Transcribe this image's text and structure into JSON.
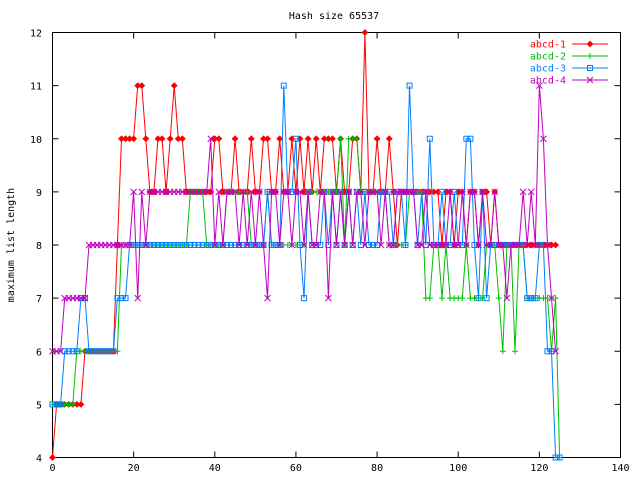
{
  "chart_data": {
    "type": "line",
    "title": "Hash size 65537",
    "xlabel": "",
    "ylabel": "maximum list length",
    "xlim": [
      0,
      140
    ],
    "ylim": [
      4,
      12
    ],
    "xticks": [
      0,
      20,
      40,
      60,
      80,
      100,
      120,
      140
    ],
    "yticks": [
      4,
      5,
      6,
      7,
      8,
      9,
      10,
      11,
      12
    ],
    "grid": false,
    "legend_position": "top-right",
    "series": [
      {
        "name": "abcd-1",
        "color": "#ff0000",
        "marker": "diamond",
        "values": [
          4,
          5,
          5,
          5,
          5,
          5,
          5,
          5,
          6,
          6,
          6,
          6,
          6,
          6,
          6,
          6,
          8,
          10,
          10,
          10,
          10,
          11,
          11,
          10,
          9,
          9,
          10,
          10,
          9,
          10,
          11,
          10,
          10,
          9,
          9,
          9,
          9,
          9,
          9,
          9,
          10,
          10,
          9,
          9,
          9,
          10,
          9,
          9,
          9,
          10,
          9,
          9,
          10,
          10,
          9,
          9,
          10,
          9,
          9,
          10,
          9,
          10,
          9,
          10,
          9,
          10,
          9,
          10,
          10,
          10,
          9,
          10,
          9,
          9,
          10,
          10,
          9,
          12,
          9,
          9,
          10,
          9,
          9,
          10,
          9,
          8,
          9,
          9,
          9,
          9,
          9,
          9,
          9,
          9,
          9,
          9,
          8,
          9,
          9,
          8,
          9,
          9,
          8,
          9,
          9,
          8,
          9,
          9,
          8,
          9,
          8,
          8,
          8,
          8,
          8,
          8,
          8,
          8,
          8,
          8,
          8,
          8,
          8,
          8,
          8
        ]
      },
      {
        "name": "abcd-2",
        "color": "#00c000",
        "marker": "plus",
        "values": [
          5,
          5,
          5,
          5,
          5,
          5,
          6,
          6,
          6,
          6,
          6,
          6,
          6,
          6,
          6,
          6,
          6,
          8,
          8,
          8,
          8,
          8,
          8,
          8,
          8,
          8,
          8,
          8,
          8,
          8,
          8,
          8,
          8,
          8,
          9,
          9,
          9,
          9,
          8,
          8,
          8,
          8,
          8,
          9,
          9,
          9,
          9,
          9,
          9,
          8,
          8,
          8,
          8,
          9,
          8,
          8,
          8,
          8,
          8,
          8,
          8,
          8,
          8,
          9,
          9,
          9,
          9,
          9,
          9,
          9,
          9,
          10,
          8,
          10,
          10,
          10,
          9,
          9,
          9,
          9,
          9,
          9,
          9,
          8,
          8,
          8,
          8,
          8,
          9,
          9,
          9,
          9,
          7,
          7,
          8,
          8,
          7,
          8,
          7,
          7,
          7,
          7,
          8,
          7,
          7,
          7,
          7,
          8,
          8,
          8,
          7,
          6,
          8,
          8,
          6,
          8,
          8,
          7,
          7,
          7,
          7,
          7,
          7,
          6,
          7,
          4
        ]
      },
      {
        "name": "abcd-3",
        "color": "#0080ff",
        "marker": "square",
        "values": [
          5,
          5,
          5,
          6,
          6,
          6,
          6,
          7,
          7,
          6,
          6,
          6,
          6,
          6,
          6,
          6,
          7,
          7,
          7,
          8,
          8,
          8,
          8,
          8,
          8,
          8,
          8,
          8,
          8,
          8,
          8,
          8,
          8,
          8,
          8,
          8,
          8,
          8,
          8,
          8,
          8,
          8,
          8,
          8,
          8,
          8,
          8,
          8,
          8,
          8,
          8,
          8,
          8,
          9,
          8,
          8,
          8,
          11,
          9,
          9,
          10,
          8,
          7,
          9,
          8,
          8,
          8,
          9,
          8,
          9,
          8,
          9,
          8,
          9,
          8,
          9,
          8,
          9,
          8,
          8,
          8,
          9,
          9,
          9,
          8,
          9,
          9,
          8,
          11,
          9,
          8,
          9,
          8,
          10,
          8,
          8,
          9,
          8,
          8,
          9,
          8,
          8,
          10,
          10,
          8,
          7,
          9,
          7,
          8,
          8,
          8,
          8,
          8,
          8,
          8,
          8,
          8,
          7,
          7,
          7,
          8,
          8,
          6,
          6,
          4,
          4
        ]
      },
      {
        "name": "abcd-4",
        "color": "#c000c0",
        "marker": "cross",
        "values": [
          6,
          6,
          6,
          7,
          7,
          7,
          7,
          7,
          7,
          8,
          8,
          8,
          8,
          8,
          8,
          8,
          8,
          8,
          8,
          8,
          9,
          7,
          9,
          8,
          9,
          9,
          9,
          9,
          9,
          9,
          9,
          9,
          9,
          9,
          9,
          9,
          9,
          9,
          9,
          10,
          8,
          9,
          8,
          9,
          9,
          9,
          8,
          9,
          8,
          9,
          8,
          9,
          8,
          7,
          9,
          9,
          8,
          9,
          9,
          8,
          9,
          9,
          8,
          9,
          8,
          8,
          9,
          9,
          7,
          9,
          8,
          9,
          8,
          9,
          8,
          9,
          9,
          8,
          9,
          9,
          9,
          8,
          9,
          8,
          8,
          9,
          9,
          9,
          9,
          9,
          8,
          8,
          9,
          8,
          8,
          8,
          8,
          8,
          9,
          8,
          8,
          9,
          8,
          9,
          9,
          8,
          9,
          8,
          8,
          9,
          8,
          8,
          7,
          8,
          8,
          8,
          9,
          8,
          9,
          8,
          11,
          10,
          8,
          7,
          6
        ]
      }
    ]
  }
}
